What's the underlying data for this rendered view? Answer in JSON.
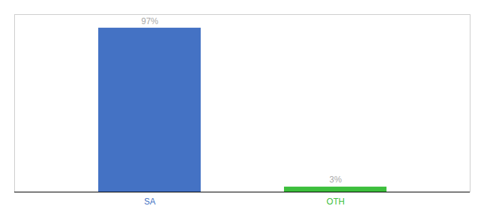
{
  "chart_data": {
    "type": "bar",
    "categories": [
      "SA",
      "OTH"
    ],
    "values": [
      97,
      3
    ],
    "value_labels": [
      "97%",
      "3%"
    ],
    "colors": [
      "#4472c4",
      "#3dbf3d"
    ],
    "ylim": [
      0,
      105
    ],
    "data_labels": true,
    "tick_labels": "x",
    "grid": false
  }
}
